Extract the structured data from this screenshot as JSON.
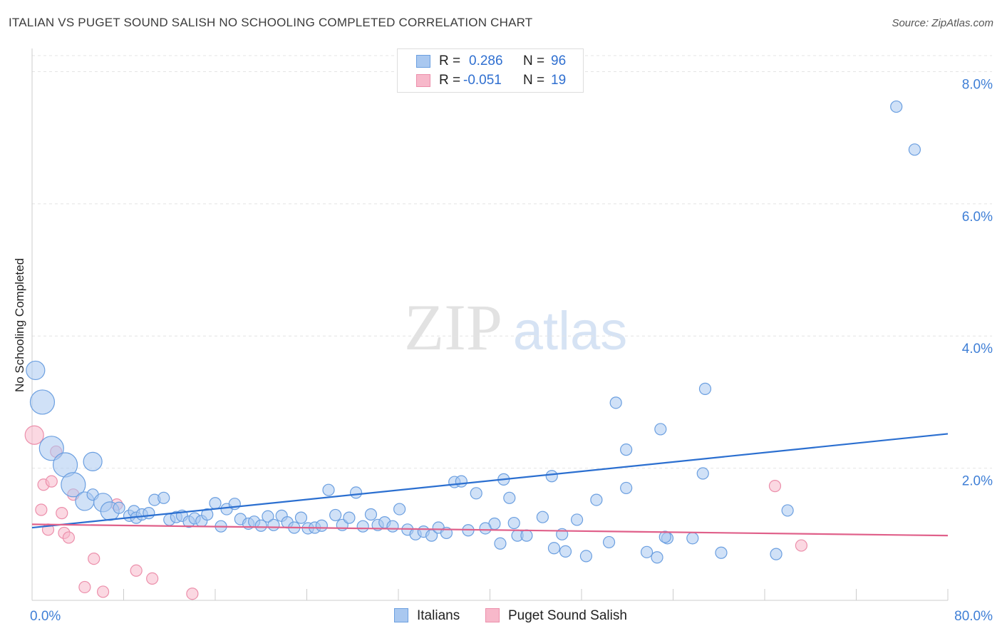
{
  "header": {
    "title": "ITALIAN VS PUGET SOUND SALISH NO SCHOOLING COMPLETED CORRELATION CHART",
    "source": "Source: ZipAtlas.com"
  },
  "watermark": {
    "zip": "ZIP",
    "atlas": "atlas"
  },
  "stats": {
    "r_label": "R =",
    "n_label": "N =",
    "rows": [
      {
        "r": "0.286",
        "n": "96"
      },
      {
        "r": "-0.051",
        "n": "19"
      }
    ]
  },
  "legend": {
    "items": [
      "Italians",
      "Puget Sound Salish"
    ]
  },
  "colors": {
    "italians_fill": "#a9c8f0",
    "italians_stroke": "#6b9fe0",
    "italians_line": "#2b6fd0",
    "salish_fill": "#f7b8ca",
    "salish_stroke": "#ec8fab",
    "salish_line": "#e0608a",
    "tick_text": "#3f7fd6"
  },
  "chart_data": {
    "type": "scatter",
    "title": "ITALIAN VS PUGET SOUND SALISH NO SCHOOLING COMPLETED CORRELATION CHART",
    "xlabel": "",
    "ylabel": "No Schooling Completed",
    "xlim": [
      0,
      80
    ],
    "ylim": [
      0,
      8.35
    ],
    "x_tick_labels": [
      "0.0%",
      "80.0%"
    ],
    "y_ticks": [
      2.0,
      4.0,
      6.0,
      8.0
    ],
    "y_tick_labels": [
      "2.0%",
      "4.0%",
      "6.0%",
      "8.0%"
    ],
    "grid": "horizontal dashed",
    "legend_position": "bottom-center",
    "series": [
      {
        "name": "Italians",
        "trend": {
          "x": [
            0,
            80
          ],
          "y": [
            1.1,
            2.52
          ]
        },
        "points": [
          {
            "x": 0.3,
            "y": 3.48,
            "s": "l"
          },
          {
            "x": 0.9,
            "y": 3.0,
            "s": "xl"
          },
          {
            "x": 1.7,
            "y": 2.3,
            "s": "xl"
          },
          {
            "x": 2.9,
            "y": 2.05,
            "s": "xl"
          },
          {
            "x": 3.6,
            "y": 1.75,
            "s": "xl"
          },
          {
            "x": 4.6,
            "y": 1.5,
            "s": "l"
          },
          {
            "x": 5.3,
            "y": 2.1,
            "s": "l"
          },
          {
            "x": 5.3,
            "y": 1.6,
            "s": "m"
          },
          {
            "x": 6.2,
            "y": 1.48,
            "s": "l"
          },
          {
            "x": 6.8,
            "y": 1.35,
            "s": "l"
          },
          {
            "x": 7.6,
            "y": 1.4,
            "s": "m"
          },
          {
            "x": 8.5,
            "y": 1.28,
            "s": "m"
          },
          {
            "x": 8.9,
            "y": 1.35,
            "s": "m"
          },
          {
            "x": 9.1,
            "y": 1.25,
            "s": "m"
          },
          {
            "x": 9.6,
            "y": 1.3,
            "s": "m"
          },
          {
            "x": 10.2,
            "y": 1.32,
            "s": "m"
          },
          {
            "x": 10.7,
            "y": 1.52,
            "s": "m"
          },
          {
            "x": 11.5,
            "y": 1.55,
            "s": "m"
          },
          {
            "x": 12.0,
            "y": 1.22,
            "s": "m"
          },
          {
            "x": 12.6,
            "y": 1.26,
            "s": "m"
          },
          {
            "x": 13.1,
            "y": 1.28,
            "s": "m"
          },
          {
            "x": 13.7,
            "y": 1.19,
            "s": "m"
          },
          {
            "x": 14.2,
            "y": 1.24,
            "s": "m"
          },
          {
            "x": 14.8,
            "y": 1.2,
            "s": "m"
          },
          {
            "x": 15.3,
            "y": 1.3,
            "s": "m"
          },
          {
            "x": 16.0,
            "y": 1.47,
            "s": "m"
          },
          {
            "x": 16.5,
            "y": 1.12,
            "s": "m"
          },
          {
            "x": 17.0,
            "y": 1.38,
            "s": "m"
          },
          {
            "x": 17.7,
            "y": 1.46,
            "s": "m"
          },
          {
            "x": 18.2,
            "y": 1.23,
            "s": "m"
          },
          {
            "x": 18.9,
            "y": 1.16,
            "s": "m"
          },
          {
            "x": 19.4,
            "y": 1.19,
            "s": "m"
          },
          {
            "x": 20.0,
            "y": 1.13,
            "s": "m"
          },
          {
            "x": 20.6,
            "y": 1.27,
            "s": "m"
          },
          {
            "x": 21.1,
            "y": 1.14,
            "s": "m"
          },
          {
            "x": 21.8,
            "y": 1.28,
            "s": "m"
          },
          {
            "x": 22.3,
            "y": 1.18,
            "s": "m"
          },
          {
            "x": 22.9,
            "y": 1.1,
            "s": "m"
          },
          {
            "x": 23.5,
            "y": 1.25,
            "s": "m"
          },
          {
            "x": 24.1,
            "y": 1.09,
            "s": "m"
          },
          {
            "x": 24.7,
            "y": 1.1,
            "s": "m"
          },
          {
            "x": 25.3,
            "y": 1.13,
            "s": "m"
          },
          {
            "x": 25.9,
            "y": 1.67,
            "s": "m"
          },
          {
            "x": 26.5,
            "y": 1.29,
            "s": "m"
          },
          {
            "x": 27.1,
            "y": 1.14,
            "s": "m"
          },
          {
            "x": 27.7,
            "y": 1.25,
            "s": "m"
          },
          {
            "x": 28.3,
            "y": 1.63,
            "s": "m"
          },
          {
            "x": 28.9,
            "y": 1.12,
            "s": "m"
          },
          {
            "x": 29.6,
            "y": 1.3,
            "s": "m"
          },
          {
            "x": 30.2,
            "y": 1.14,
            "s": "m"
          },
          {
            "x": 30.8,
            "y": 1.18,
            "s": "m"
          },
          {
            "x": 31.5,
            "y": 1.12,
            "s": "m"
          },
          {
            "x": 32.1,
            "y": 1.38,
            "s": "m"
          },
          {
            "x": 32.8,
            "y": 1.07,
            "s": "m"
          },
          {
            "x": 33.5,
            "y": 1.0,
            "s": "m"
          },
          {
            "x": 34.2,
            "y": 1.04,
            "s": "m"
          },
          {
            "x": 34.9,
            "y": 0.98,
            "s": "m"
          },
          {
            "x": 35.5,
            "y": 1.1,
            "s": "m"
          },
          {
            "x": 36.2,
            "y": 1.02,
            "s": "m"
          },
          {
            "x": 36.9,
            "y": 1.79,
            "s": "m"
          },
          {
            "x": 37.5,
            "y": 1.8,
            "s": "m"
          },
          {
            "x": 38.1,
            "y": 1.06,
            "s": "m"
          },
          {
            "x": 38.8,
            "y": 1.62,
            "s": "m"
          },
          {
            "x": 40.4,
            "y": 1.16,
            "s": "m"
          },
          {
            "x": 41.2,
            "y": 1.83,
            "s": "m"
          },
          {
            "x": 40.9,
            "y": 0.86,
            "s": "m"
          },
          {
            "x": 39.6,
            "y": 1.09,
            "s": "m"
          },
          {
            "x": 42.1,
            "y": 1.17,
            "s": "m"
          },
          {
            "x": 42.4,
            "y": 0.98,
            "s": "m"
          },
          {
            "x": 43.2,
            "y": 0.98,
            "s": "m"
          },
          {
            "x": 44.6,
            "y": 1.26,
            "s": "m"
          },
          {
            "x": 45.4,
            "y": 1.88,
            "s": "m"
          },
          {
            "x": 41.7,
            "y": 1.55,
            "s": "m"
          },
          {
            "x": 45.6,
            "y": 0.79,
            "s": "m"
          },
          {
            "x": 46.6,
            "y": 0.74,
            "s": "m"
          },
          {
            "x": 47.6,
            "y": 1.22,
            "s": "m"
          },
          {
            "x": 48.4,
            "y": 0.67,
            "s": "m"
          },
          {
            "x": 49.3,
            "y": 1.52,
            "s": "m"
          },
          {
            "x": 50.4,
            "y": 0.88,
            "s": "m"
          },
          {
            "x": 51.0,
            "y": 2.99,
            "s": "m"
          },
          {
            "x": 51.9,
            "y": 1.7,
            "s": "m"
          },
          {
            "x": 51.9,
            "y": 2.28,
            "s": "m"
          },
          {
            "x": 53.7,
            "y": 0.73,
            "s": "m"
          },
          {
            "x": 54.6,
            "y": 0.65,
            "s": "m"
          },
          {
            "x": 54.9,
            "y": 2.59,
            "s": "m"
          },
          {
            "x": 55.5,
            "y": 0.94,
            "s": "m"
          },
          {
            "x": 57.7,
            "y": 0.94,
            "s": "m"
          },
          {
            "x": 58.6,
            "y": 1.92,
            "s": "m"
          },
          {
            "x": 58.8,
            "y": 3.2,
            "s": "m"
          },
          {
            "x": 60.2,
            "y": 0.72,
            "s": "m"
          },
          {
            "x": 65.0,
            "y": 0.7,
            "s": "m"
          },
          {
            "x": 66.0,
            "y": 1.36,
            "s": "m"
          },
          {
            "x": 75.5,
            "y": 7.47,
            "s": "m"
          },
          {
            "x": 77.1,
            "y": 6.82,
            "s": "m"
          },
          {
            "x": 55.3,
            "y": 0.96,
            "s": "m"
          },
          {
            "x": 46.3,
            "y": 1.0,
            "s": "m"
          }
        ]
      },
      {
        "name": "Puget Sound Salish",
        "trend": {
          "x": [
            0,
            80
          ],
          "y": [
            1.15,
            0.98
          ]
        },
        "points": [
          {
            "x": 0.2,
            "y": 2.5,
            "s": "l"
          },
          {
            "x": 0.8,
            "y": 1.37,
            "s": "m"
          },
          {
            "x": 1.0,
            "y": 1.75,
            "s": "m"
          },
          {
            "x": 1.4,
            "y": 1.07,
            "s": "m"
          },
          {
            "x": 1.7,
            "y": 1.8,
            "s": "m"
          },
          {
            "x": 2.1,
            "y": 2.25,
            "s": "m"
          },
          {
            "x": 2.6,
            "y": 1.32,
            "s": "m"
          },
          {
            "x": 2.8,
            "y": 1.02,
            "s": "m"
          },
          {
            "x": 3.2,
            "y": 0.95,
            "s": "m"
          },
          {
            "x": 3.6,
            "y": 1.6,
            "s": "m"
          },
          {
            "x": 4.6,
            "y": 0.2,
            "s": "m"
          },
          {
            "x": 5.4,
            "y": 0.63,
            "s": "m"
          },
          {
            "x": 6.2,
            "y": 0.13,
            "s": "m"
          },
          {
            "x": 7.4,
            "y": 1.45,
            "s": "m"
          },
          {
            "x": 9.1,
            "y": 0.45,
            "s": "m"
          },
          {
            "x": 10.5,
            "y": 0.33,
            "s": "m"
          },
          {
            "x": 14.0,
            "y": 0.1,
            "s": "m"
          },
          {
            "x": 64.9,
            "y": 1.73,
            "s": "m"
          },
          {
            "x": 67.2,
            "y": 0.83,
            "s": "m"
          }
        ]
      }
    ]
  }
}
